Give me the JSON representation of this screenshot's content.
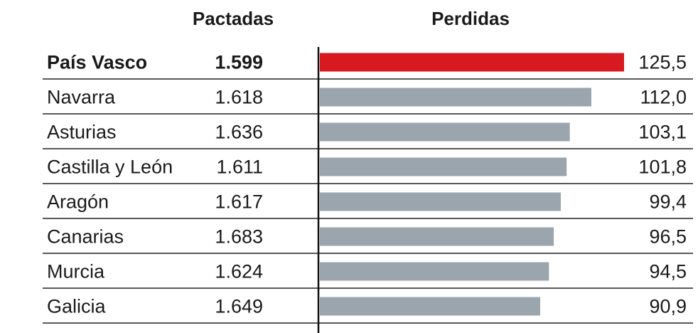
{
  "headers": {
    "pactadas": "Pactadas",
    "perdidas": "Perdidas"
  },
  "colors": {
    "highlight": "#d71920",
    "bar": "#9aa5ad",
    "rule": "#222222",
    "axis": "#111111"
  },
  "chart_data": {
    "type": "bar",
    "orientation": "horizontal",
    "title": "",
    "columns": [
      "Pactadas",
      "Perdidas"
    ],
    "highlight_index": 0,
    "rows": [
      {
        "region": "País Vasco",
        "pactadas": "1.599",
        "perdidas": 125.5,
        "perdidas_label": "125,5"
      },
      {
        "region": "Navarra",
        "pactadas": "1.618",
        "perdidas": 112.0,
        "perdidas_label": "112,0"
      },
      {
        "region": "Asturias",
        "pactadas": "1.636",
        "perdidas": 103.1,
        "perdidas_label": "103,1"
      },
      {
        "region": "Castilla y León",
        "pactadas": "1.611",
        "perdidas": 101.8,
        "perdidas_label": "101,8"
      },
      {
        "region": "Aragón",
        "pactadas": "1.617",
        "perdidas": 99.4,
        "perdidas_label": "99,4"
      },
      {
        "region": "Canarias",
        "pactadas": "1.683",
        "perdidas": 96.5,
        "perdidas_label": "96,5"
      },
      {
        "region": "Murcia",
        "pactadas": "1.624",
        "perdidas": 94.5,
        "perdidas_label": "94,5"
      },
      {
        "region": "Galicia",
        "pactadas": "1.649",
        "perdidas": 90.9,
        "perdidas_label": "90,9"
      }
    ]
  }
}
